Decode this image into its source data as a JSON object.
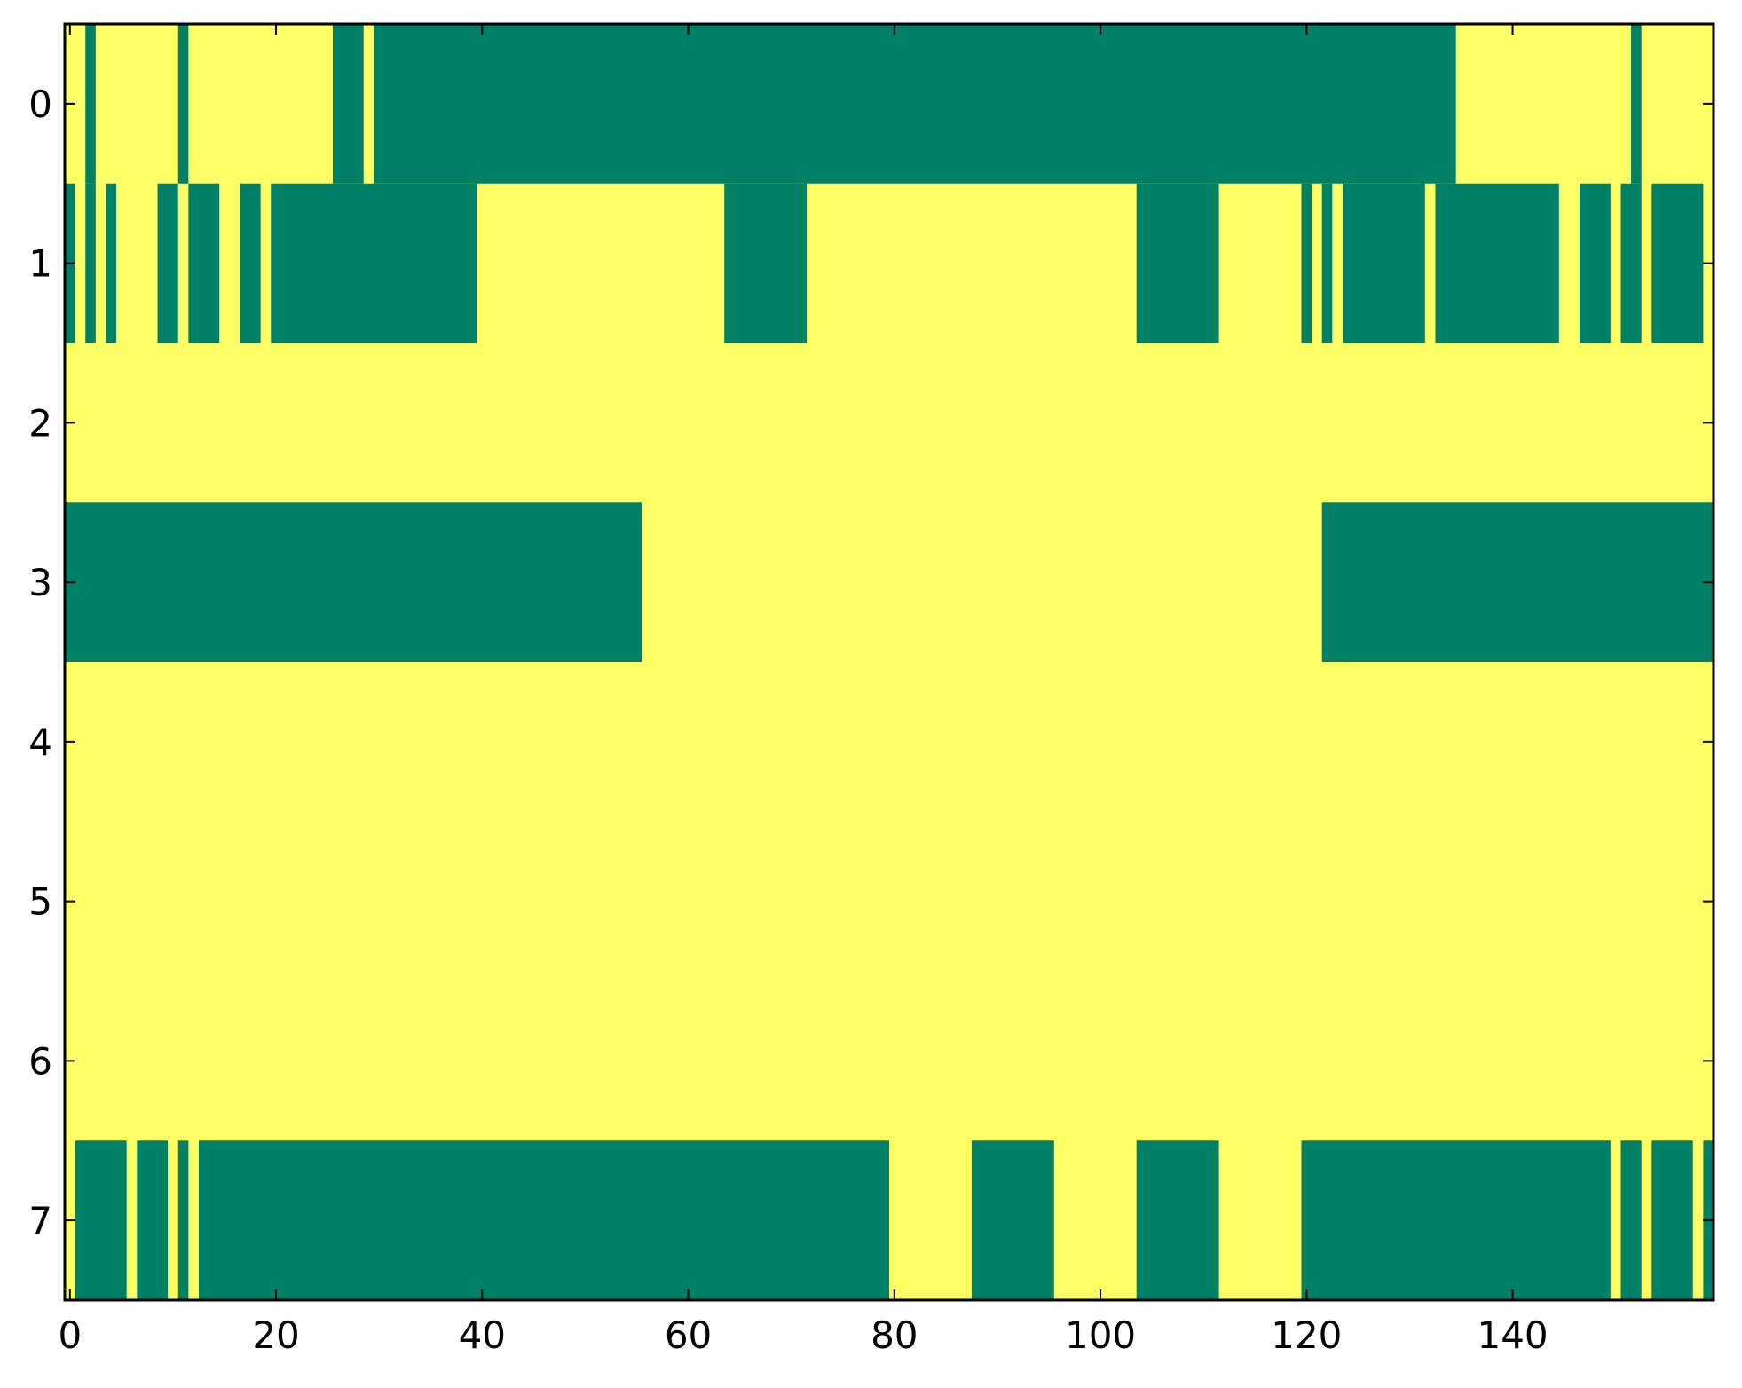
{
  "chart_data": {
    "type": "heatmap",
    "title": "",
    "xlabel": "",
    "ylabel": "",
    "xlim": [
      -0.5,
      159.5
    ],
    "ylim": [
      7.5,
      -0.5
    ],
    "n_columns": 160,
    "n_rows": 8,
    "colors": {
      "0": "#ffff66",
      "1": "#008066"
    },
    "x_ticks": [
      0,
      20,
      40,
      60,
      80,
      100,
      120,
      140
    ],
    "y_ticks": [
      0,
      1,
      2,
      3,
      4,
      5,
      6,
      7
    ],
    "x_tick_labels": [
      "0",
      "20",
      "40",
      "60",
      "80",
      "100",
      "120",
      "140"
    ],
    "y_tick_labels": [
      "0",
      "1",
      "2",
      "3",
      "4",
      "5",
      "6",
      "7"
    ],
    "grid": false,
    "rows": [
      {
        "row": 0,
        "value_1_ranges": [
          [
            2,
            2
          ],
          [
            11,
            11
          ],
          [
            26,
            28
          ],
          [
            30,
            134
          ],
          [
            152,
            152
          ]
        ]
      },
      {
        "row": 1,
        "value_1_ranges": [
          [
            0,
            0
          ],
          [
            2,
            2
          ],
          [
            4,
            4
          ],
          [
            9,
            10
          ],
          [
            12,
            14
          ],
          [
            17,
            18
          ],
          [
            20,
            39
          ],
          [
            64,
            71
          ],
          [
            104,
            111
          ],
          [
            120,
            120
          ],
          [
            122,
            122
          ],
          [
            124,
            131
          ],
          [
            133,
            144
          ],
          [
            147,
            149
          ],
          [
            151,
            152
          ],
          [
            154,
            158
          ]
        ]
      },
      {
        "row": 2,
        "value_1_ranges": []
      },
      {
        "row": 3,
        "value_1_ranges": [
          [
            0,
            55
          ],
          [
            122,
            159
          ]
        ]
      },
      {
        "row": 4,
        "value_1_ranges": []
      },
      {
        "row": 5,
        "value_1_ranges": []
      },
      {
        "row": 6,
        "value_1_ranges": []
      },
      {
        "row": 7,
        "value_1_ranges": [
          [
            1,
            5
          ],
          [
            7,
            9
          ],
          [
            11,
            11
          ],
          [
            13,
            79
          ],
          [
            88,
            95
          ],
          [
            104,
            111
          ],
          [
            120,
            149
          ],
          [
            151,
            152
          ],
          [
            154,
            157
          ],
          [
            159,
            159
          ]
        ]
      }
    ]
  }
}
